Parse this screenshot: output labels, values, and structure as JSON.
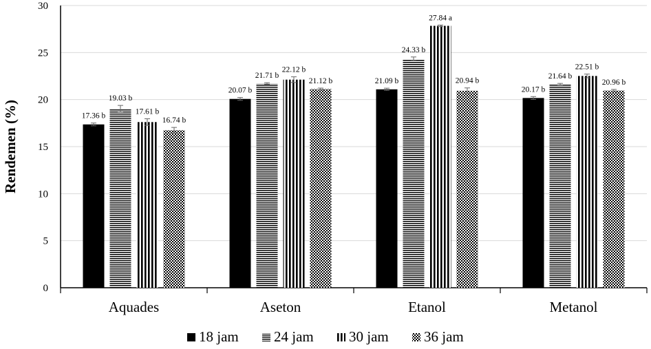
{
  "chart_data": {
    "type": "bar",
    "ylabel": "Rendemen (%)",
    "ylim": [
      0,
      30
    ],
    "yticks": [
      0,
      5,
      10,
      15,
      20,
      25,
      30
    ],
    "grid": true,
    "legend_position": "bottom",
    "categories": [
      "Aquades",
      "Aseton",
      "Etanol",
      "Metanol"
    ],
    "series": [
      {
        "name": "18 jam",
        "pattern": "solid",
        "color": "#000000",
        "values": [
          17.36,
          20.07,
          21.09,
          20.17
        ],
        "errors": [
          0.15,
          0.15,
          0.12,
          0.15
        ],
        "labels": [
          "17.36 b",
          "20.07 b",
          "21.09 b",
          "20.17 b"
        ]
      },
      {
        "name": "24 jam",
        "pattern": "horizontal-stripes",
        "color": "#000000",
        "values": [
          19.03,
          21.71,
          24.33,
          21.64
        ],
        "errors": [
          0.35,
          0.08,
          0.2,
          0.08
        ],
        "labels": [
          "19.03 b",
          "21.71 b",
          "24.33 b",
          "21.64 b"
        ]
      },
      {
        "name": "30 jam",
        "pattern": "vertical-stripes",
        "color": "#000000",
        "values": [
          17.61,
          22.12,
          27.84,
          22.51
        ],
        "errors": [
          0.35,
          0.3,
          0.08,
          0.2
        ],
        "labels": [
          "17.61 b",
          "22.12 b",
          "27.84 a",
          "22.51 b"
        ]
      },
      {
        "name": "36 jam",
        "pattern": "diagonal-checker",
        "color": "#000000",
        "values": [
          16.74,
          21.12,
          20.94,
          20.96
        ],
        "errors": [
          0.3,
          0.1,
          0.3,
          0.12
        ],
        "labels": [
          "16.74 b",
          "21.12 b",
          "20.94 b",
          "20.96 b"
        ]
      }
    ]
  }
}
